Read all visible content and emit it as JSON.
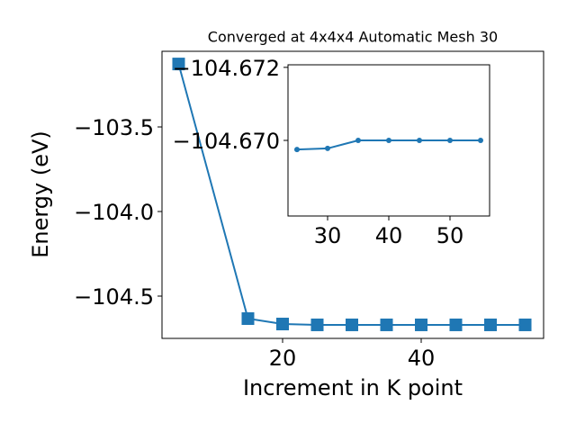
{
  "chart_data": [
    {
      "type": "line",
      "title": "Converged at 4x4x4 Automatic Mesh 30",
      "x_label": "Increment in K point",
      "y_label": "Energy (eV)",
      "x": [
        5,
        15,
        20,
        25,
        30,
        35,
        40,
        45,
        50,
        55
      ],
      "series": [
        {
          "color": "#1f77b4",
          "marker": "square",
          "values": [
            -103.128,
            -104.633,
            -104.665,
            -104.67,
            -104.67,
            -104.67,
            -104.67,
            -104.67,
            -104.67,
            -104.67
          ]
        }
      ],
      "xlim": [
        2.6,
        57.66
      ],
      "ylim": [
        -104.75,
        -103.053
      ],
      "xticks": [
        20,
        40
      ],
      "yticks": [
        {
          "value": -103.5,
          "label": "−103.5"
        },
        {
          "value": -104.0,
          "label": "−104.0"
        },
        {
          "value": -104.5,
          "label": "−104.5"
        }
      ]
    },
    {
      "type": "line",
      "x": [
        25,
        30,
        35,
        40,
        45,
        50,
        55
      ],
      "series": [
        {
          "color": "#1f77b4",
          "marker": "circle",
          "values": [
            -104.66975,
            -104.66978,
            -104.67,
            -104.67,
            -104.67,
            -104.67,
            -104.67
          ]
        }
      ],
      "xlim": [
        23.53,
        56.47
      ],
      "ylim": [
        -104.66793,
        -104.67207
      ],
      "xticks": [
        30,
        40,
        50
      ],
      "yticks": [
        {
          "value": -104.672,
          "label": "−104.672"
        },
        {
          "value": -104.67,
          "label": "−104.670"
        }
      ]
    }
  ]
}
